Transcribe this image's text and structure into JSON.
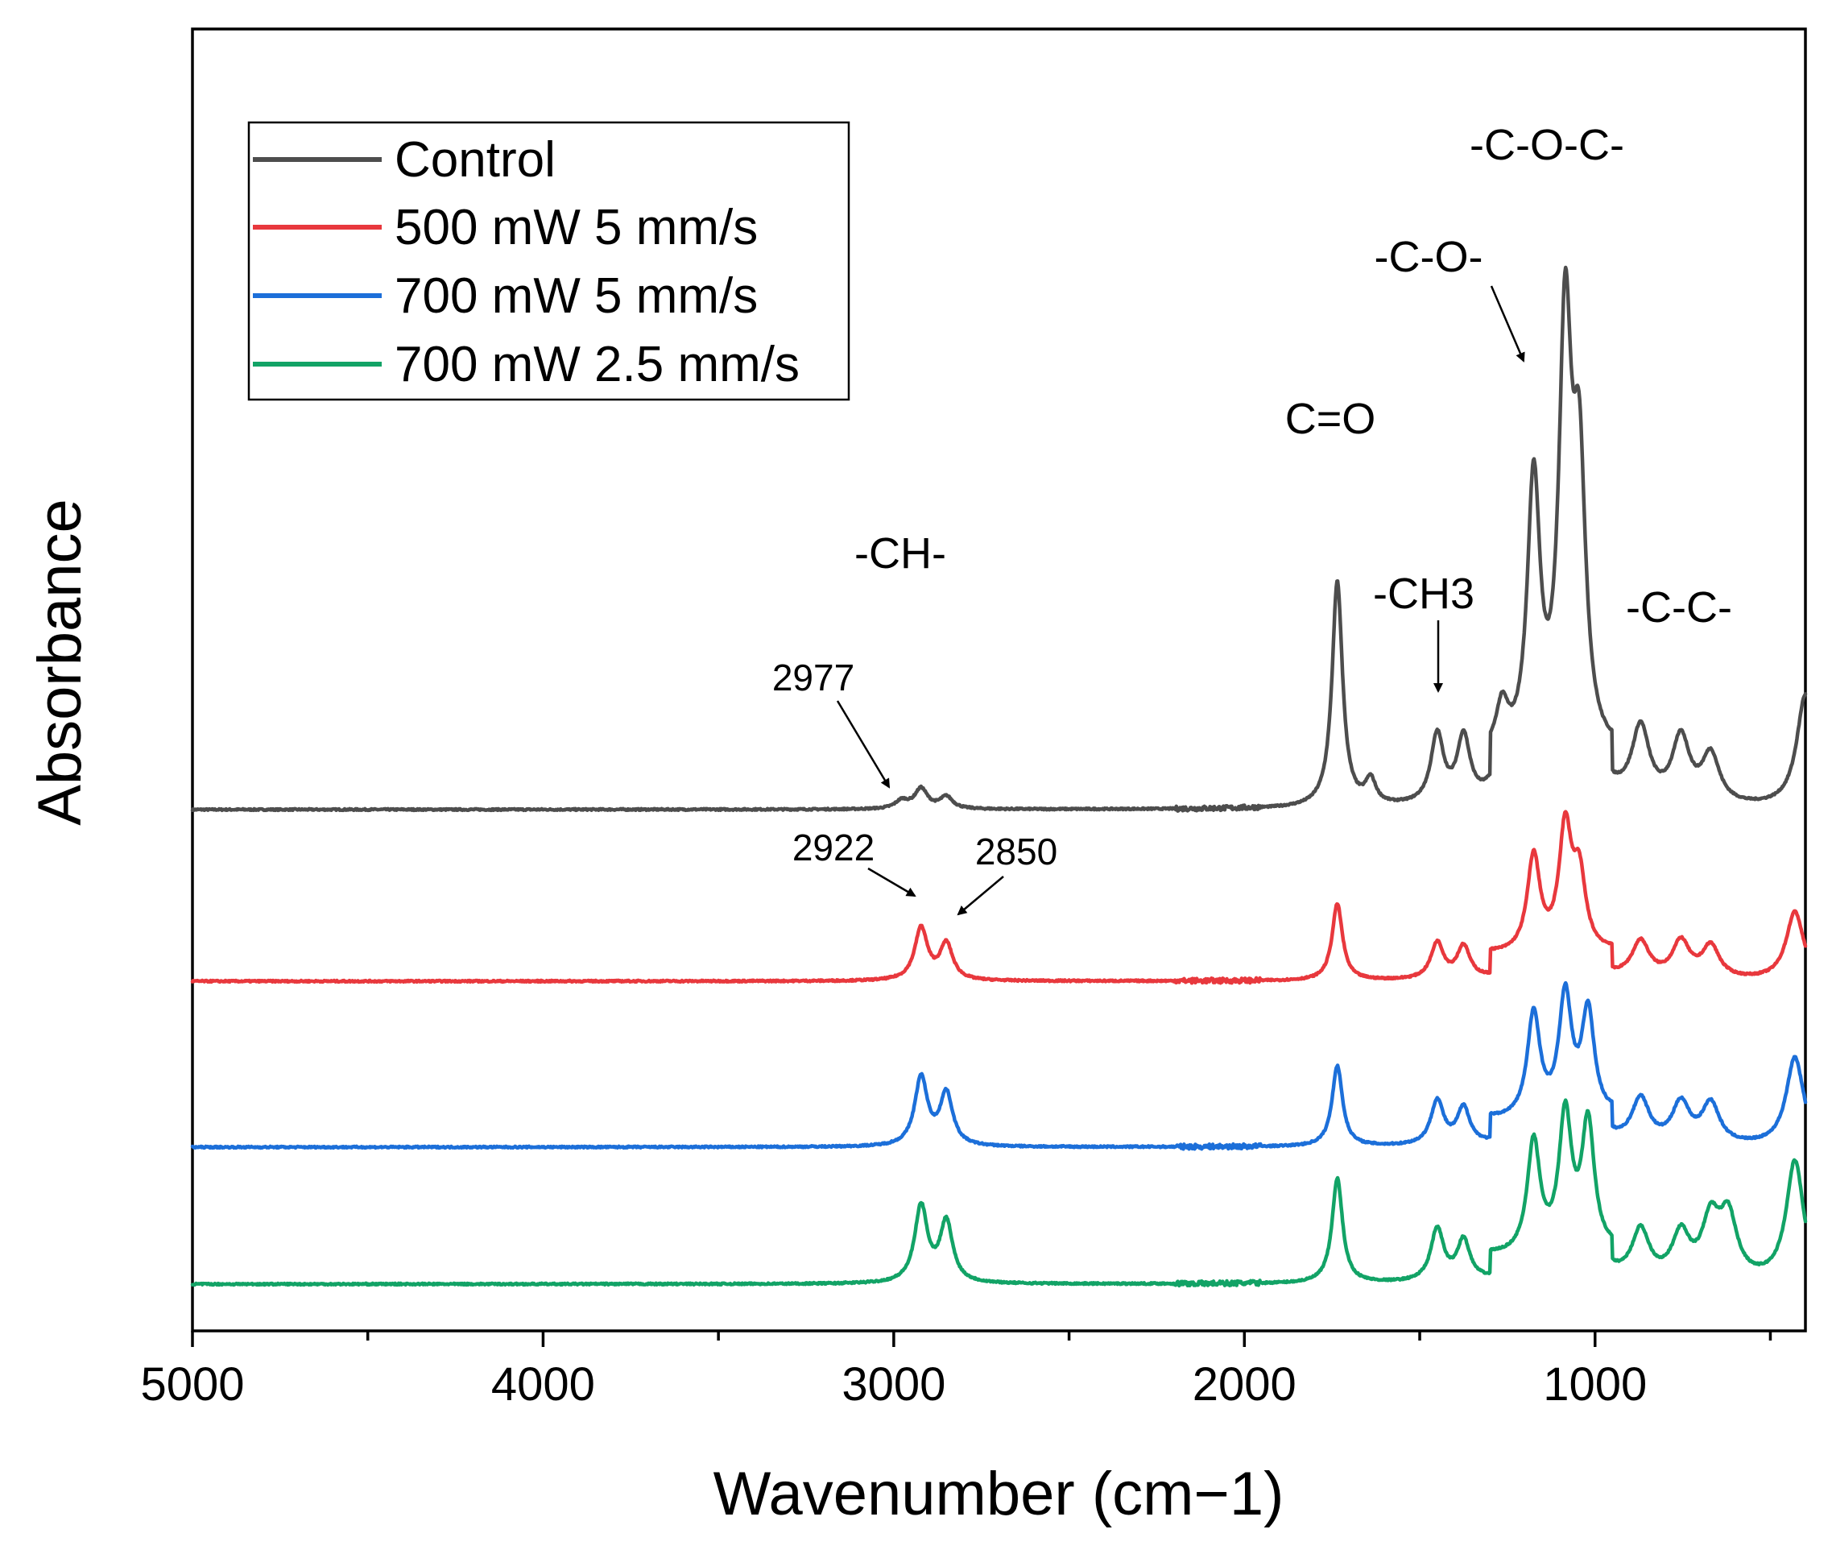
{
  "chart_data": {
    "type": "line",
    "title": "",
    "xlabel": "Wavenumber (cm−1)",
    "ylabel": "Absorbance",
    "xlim": [
      5000,
      400
    ],
    "xticks": [
      5000,
      4000,
      3000,
      2000,
      1000
    ],
    "grid": false,
    "legend_position": "top-left",
    "series": [
      {
        "name": "Control",
        "color": "#4d4d4d",
        "peaks": [
          {
            "x": 2977,
            "h": 0.01
          },
          {
            "x": 2922,
            "h": 0.025
          },
          {
            "x": 2850,
            "h": 0.015
          },
          {
            "x": 1735,
            "h": 0.28
          },
          {
            "x": 1640,
            "h": 0.03
          },
          {
            "x": 1450,
            "h": 0.085
          },
          {
            "x": 1375,
            "h": 0.08
          },
          {
            "x": 1265,
            "h": 0.06
          },
          {
            "x": 1175,
            "h": 0.34
          },
          {
            "x": 1085,
            "h": 0.52
          },
          {
            "x": 1045,
            "h": 0.33
          },
          {
            "x": 870,
            "h": 0.09
          },
          {
            "x": 755,
            "h": 0.08
          },
          {
            "x": 670,
            "h": 0.06
          },
          {
            "x": 400,
            "h": 0.14
          }
        ]
      },
      {
        "name": "500 mW 5 mm/s",
        "color": "#e8383d",
        "peaks": [
          {
            "x": 2922,
            "h": 0.065
          },
          {
            "x": 2850,
            "h": 0.045
          },
          {
            "x": 1735,
            "h": 0.095
          },
          {
            "x": 1450,
            "h": 0.045
          },
          {
            "x": 1375,
            "h": 0.04
          },
          {
            "x": 1175,
            "h": 0.12
          },
          {
            "x": 1085,
            "h": 0.15
          },
          {
            "x": 1045,
            "h": 0.09
          },
          {
            "x": 870,
            "h": 0.045
          },
          {
            "x": 755,
            "h": 0.045
          },
          {
            "x": 670,
            "h": 0.04
          },
          {
            "x": 430,
            "h": 0.085
          }
        ]
      },
      {
        "name": "700 mW 5 mm/s",
        "color": "#1c6fd9",
        "peaks": [
          {
            "x": 2922,
            "h": 0.085
          },
          {
            "x": 2850,
            "h": 0.065
          },
          {
            "x": 1735,
            "h": 0.1
          },
          {
            "x": 1450,
            "h": 0.055
          },
          {
            "x": 1375,
            "h": 0.045
          },
          {
            "x": 1175,
            "h": 0.13
          },
          {
            "x": 1085,
            "h": 0.15
          },
          {
            "x": 1020,
            "h": 0.13
          },
          {
            "x": 870,
            "h": 0.055
          },
          {
            "x": 755,
            "h": 0.05
          },
          {
            "x": 670,
            "h": 0.05
          },
          {
            "x": 430,
            "h": 0.11
          }
        ]
      },
      {
        "name": "700 mW 2.5 mm/s",
        "color": "#12a366",
        "peaks": [
          {
            "x": 2922,
            "h": 0.095
          },
          {
            "x": 2850,
            "h": 0.075
          },
          {
            "x": 1735,
            "h": 0.13
          },
          {
            "x": 1450,
            "h": 0.065
          },
          {
            "x": 1375,
            "h": 0.05
          },
          {
            "x": 1175,
            "h": 0.14
          },
          {
            "x": 1085,
            "h": 0.17
          },
          {
            "x": 1020,
            "h": 0.16
          },
          {
            "x": 870,
            "h": 0.06
          },
          {
            "x": 755,
            "h": 0.055
          },
          {
            "x": 670,
            "h": 0.07
          },
          {
            "x": 620,
            "h": 0.075
          },
          {
            "x": 430,
            "h": 0.15
          }
        ]
      }
    ],
    "annotations": {
      "ch": "-CH-",
      "co_double": "C=O",
      "ch3": "-CH3",
      "co": "-C-O-",
      "coc": "-C-O-C-",
      "cc": "-C-C-",
      "n2977": "2977",
      "n2922": "2922",
      "n2850": "2850"
    }
  }
}
